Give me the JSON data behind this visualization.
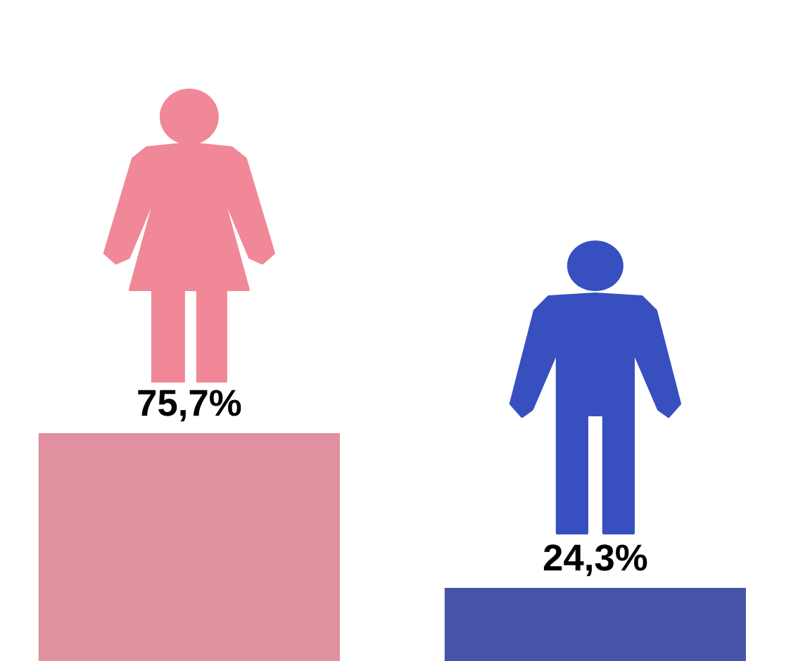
{
  "chart_data": {
    "type": "bar",
    "categories": [
      null,
      null
    ],
    "values": [
      75.7,
      24.3
    ],
    "colors": [
      "#e0909e",
      "#4553a8"
    ],
    "value_labels": [
      "75,7%",
      "24,3%"
    ]
  }
}
